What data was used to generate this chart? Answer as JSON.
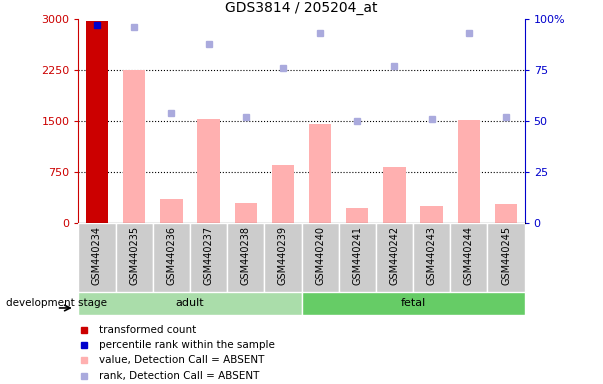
{
  "title": "GDS3814 / 205204_at",
  "samples": [
    "GSM440234",
    "GSM440235",
    "GSM440236",
    "GSM440237",
    "GSM440238",
    "GSM440239",
    "GSM440240",
    "GSM440241",
    "GSM440242",
    "GSM440243",
    "GSM440244",
    "GSM440245"
  ],
  "bar_values": [
    2980,
    2250,
    350,
    1530,
    290,
    850,
    1460,
    210,
    820,
    240,
    1510,
    270
  ],
  "bar_present": [
    true,
    false,
    false,
    false,
    false,
    false,
    false,
    false,
    false,
    false,
    false,
    false
  ],
  "rank_values": [
    97,
    96,
    54,
    88,
    52,
    76,
    93,
    50,
    77,
    51,
    93,
    52
  ],
  "ylim_left": [
    0,
    3000
  ],
  "ylim_right": [
    0,
    100
  ],
  "yticks_left": [
    0,
    750,
    1500,
    2250,
    3000
  ],
  "yticks_right": [
    0,
    25,
    50,
    75,
    100
  ],
  "yticklabels_left": [
    "0",
    "750",
    "1500",
    "2250",
    "3000"
  ],
  "yticklabels_right": [
    "0",
    "25",
    "50",
    "75",
    "100%"
  ],
  "adult_samples": [
    0,
    1,
    2,
    3,
    4,
    5
  ],
  "fetal_samples": [
    6,
    7,
    8,
    9,
    10,
    11
  ],
  "adult_label": "adult",
  "fetal_label": "fetal",
  "group_label": "development stage",
  "bar_color_present": "#cc0000",
  "bar_color_absent": "#ffb0b0",
  "rank_color_present": "#0000cc",
  "rank_color_absent": "#aaaadd",
  "adult_bg_color": "#aaddaa",
  "fetal_bg_color": "#66cc66",
  "sample_bg_color": "#cccccc",
  "plot_bg_color": "#ffffff",
  "left_tick_color": "#cc0000",
  "right_tick_color": "#0000cc",
  "legend_items": [
    {
      "label": "transformed count",
      "color": "#cc0000",
      "marker": "s"
    },
    {
      "label": "percentile rank within the sample",
      "color": "#0000cc",
      "marker": "s"
    },
    {
      "label": "value, Detection Call = ABSENT",
      "color": "#ffb0b0",
      "marker": "s"
    },
    {
      "label": "rank, Detection Call = ABSENT",
      "color": "#aaaadd",
      "marker": "s"
    }
  ]
}
